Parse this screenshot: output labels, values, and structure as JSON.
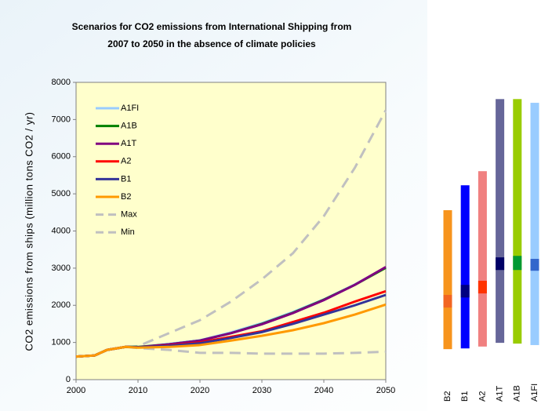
{
  "chart_data": [
    {
      "type": "line",
      "title": "Scenarios for CO2 emissions from International Shipping from",
      "subtitle": "2007 to 2050  in the absence of climate policies",
      "y_label": "CO2 emissions from ships (million tons CO2 / yr)",
      "x": [
        2000,
        2003,
        2005,
        2008,
        2010,
        2015,
        2020,
        2025,
        2030,
        2035,
        2040,
        2045,
        2050
      ],
      "xlim": [
        2000,
        2050
      ],
      "xticks": [
        2000,
        2010,
        2020,
        2030,
        2040,
        2050
      ],
      "ylim": [
        0,
        8000
      ],
      "yticks": [
        0,
        1000,
        2000,
        3000,
        4000,
        5000,
        6000,
        7000,
        8000
      ],
      "series": [
        {
          "name": "A1FI",
          "color": "#99ccff",
          "dashed": false,
          "values": [
            620,
            650,
            800,
            880,
            880,
            960,
            1060,
            1270,
            1520,
            1820,
            2160,
            2560,
            3020
          ]
        },
        {
          "name": "A1B",
          "color": "#008000",
          "dashed": false,
          "values": [
            620,
            650,
            800,
            880,
            880,
            950,
            1050,
            1250,
            1500,
            1800,
            2150,
            2550,
            3010
          ]
        },
        {
          "name": "A1T",
          "color": "#800080",
          "dashed": false,
          "values": [
            620,
            650,
            800,
            880,
            870,
            950,
            1050,
            1250,
            1490,
            1790,
            2140,
            2550,
            3030
          ]
        },
        {
          "name": "A2",
          "color": "#ff0000",
          "dashed": false,
          "values": [
            620,
            650,
            800,
            880,
            870,
            920,
            1000,
            1150,
            1300,
            1550,
            1800,
            2100,
            2380
          ]
        },
        {
          "name": "B1",
          "color": "#333399",
          "dashed": false,
          "values": [
            620,
            650,
            800,
            880,
            870,
            910,
            980,
            1120,
            1280,
            1500,
            1750,
            2000,
            2280
          ]
        },
        {
          "name": "B2",
          "color": "#ff9900",
          "dashed": false,
          "values": [
            620,
            650,
            800,
            880,
            860,
            880,
            930,
            1050,
            1180,
            1330,
            1520,
            1750,
            2020
          ]
        },
        {
          "name": "Max",
          "color": "#c0c0c0",
          "dashed": true,
          "values": [
            620,
            650,
            800,
            880,
            900,
            1250,
            1600,
            2100,
            2700,
            3400,
            4400,
            5700,
            7250
          ]
        },
        {
          "name": "Min",
          "color": "#c0c0c0",
          "dashed": true,
          "values": [
            620,
            650,
            800,
            880,
            850,
            800,
            720,
            720,
            700,
            700,
            700,
            720,
            750
          ]
        }
      ]
    },
    {
      "type": "range-bar",
      "ylim": [
        0,
        8000
      ],
      "categories": [
        "B2",
        "B1",
        "A2",
        "A1T",
        "A1B",
        "A1FI"
      ],
      "colors": [
        "#f7941d",
        "#0000ff",
        "#f08080",
        "#666699",
        "#99cc00",
        "#99ccff"
      ],
      "marker_colors": [
        "#f26522",
        "#000080",
        "#ff3300",
        "#000066",
        "#009933",
        "#3366cc"
      ],
      "low": [
        820,
        840,
        890,
        990,
        970,
        930
      ],
      "high": [
        4560,
        5230,
        5610,
        7550,
        7550,
        7450
      ],
      "marker_low": [
        1940,
        2210,
        2320,
        2950,
        2950,
        2930
      ],
      "marker_high": [
        2280,
        2550,
        2660,
        3290,
        3330,
        3250
      ]
    }
  ]
}
